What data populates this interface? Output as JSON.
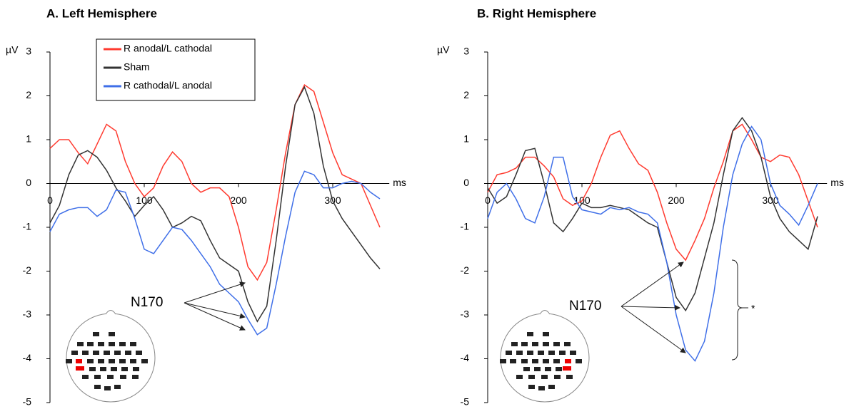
{
  "chart_data": [
    {
      "type": "line",
      "title": "A. Left Hemisphere",
      "xlabel": "ms",
      "ylabel": "µV",
      "x": [
        0,
        10,
        20,
        30,
        40,
        50,
        60,
        70,
        80,
        90,
        100,
        110,
        120,
        130,
        140,
        150,
        160,
        170,
        180,
        190,
        200,
        210,
        220,
        230,
        240,
        250,
        260,
        270,
        280,
        290,
        300,
        310,
        320,
        330,
        340,
        350
      ],
      "xlim": [
        0,
        360
      ],
      "xticks": [
        0,
        100,
        200,
        300
      ],
      "ylim": [
        -5,
        3
      ],
      "yticks": [
        -5,
        -4,
        -3,
        -2,
        -1,
        0,
        1,
        2,
        3
      ],
      "legend": "top-left",
      "series": [
        {
          "name": "R anodal/L cathodal",
          "color": "#ff3b30",
          "values": [
            0.8,
            1.0,
            1.0,
            0.7,
            0.45,
            0.9,
            1.35,
            1.2,
            0.5,
            0.0,
            -0.3,
            -0.1,
            0.4,
            0.72,
            0.5,
            0.0,
            -0.2,
            -0.1,
            -0.1,
            -0.3,
            -1.0,
            -1.9,
            -2.2,
            -1.8,
            -0.6,
            0.7,
            1.8,
            2.25,
            2.1,
            1.4,
            0.7,
            0.2,
            0.1,
            0.0,
            -0.5,
            -1.0
          ]
        },
        {
          "name": "Sham",
          "color": "#333333",
          "values": [
            -0.9,
            -0.5,
            0.2,
            0.65,
            0.75,
            0.6,
            0.3,
            -0.1,
            -0.4,
            -0.75,
            -0.5,
            -0.3,
            -0.6,
            -1.0,
            -0.9,
            -0.75,
            -0.85,
            -1.3,
            -1.7,
            -1.85,
            -2.0,
            -2.7,
            -3.15,
            -2.8,
            -1.3,
            0.4,
            1.8,
            2.2,
            1.6,
            0.4,
            -0.4,
            -0.8,
            -1.1,
            -1.4,
            -1.7,
            -1.95
          ]
        },
        {
          "name": "R cathodal/L anodal",
          "color": "#3f6fe8",
          "values": [
            -1.1,
            -0.7,
            -0.6,
            -0.55,
            -0.55,
            -0.75,
            -0.6,
            -0.15,
            -0.2,
            -0.8,
            -1.5,
            -1.6,
            -1.3,
            -1.0,
            -1.05,
            -1.3,
            -1.6,
            -1.9,
            -2.3,
            -2.5,
            -2.7,
            -3.1,
            -3.45,
            -3.3,
            -2.3,
            -1.2,
            -0.2,
            0.28,
            0.2,
            -0.1,
            -0.1,
            0.0,
            0.05,
            0.0,
            -0.2,
            -0.35
          ]
        }
      ],
      "annotations": [
        "N170"
      ]
    },
    {
      "type": "line",
      "title": "B. Right Hemisphere",
      "xlabel": "ms",
      "ylabel": "µV",
      "x": [
        0,
        10,
        20,
        30,
        40,
        50,
        60,
        70,
        80,
        90,
        100,
        110,
        120,
        130,
        140,
        150,
        160,
        170,
        180,
        190,
        200,
        210,
        220,
        230,
        240,
        250,
        260,
        270,
        280,
        290,
        300,
        310,
        320,
        330,
        340,
        350
      ],
      "xlim": [
        0,
        360
      ],
      "xticks": [
        0,
        100,
        200,
        300
      ],
      "ylim": [
        -5,
        3
      ],
      "yticks": [
        -5,
        -4,
        -3,
        -2,
        -1,
        0,
        1,
        2,
        3
      ],
      "series": [
        {
          "color": "#ff3b30",
          "values": [
            -0.2,
            0.2,
            0.25,
            0.35,
            0.6,
            0.6,
            0.4,
            0.15,
            -0.35,
            -0.5,
            -0.4,
            0.0,
            0.6,
            1.1,
            1.2,
            0.8,
            0.45,
            0.3,
            -0.2,
            -0.9,
            -1.5,
            -1.75,
            -1.3,
            -0.8,
            -0.1,
            0.5,
            1.2,
            1.35,
            1.0,
            0.6,
            0.5,
            0.65,
            0.6,
            0.2,
            -0.4,
            -1.0
          ]
        },
        {
          "color": "#333333",
          "values": [
            -0.1,
            -0.45,
            -0.3,
            0.2,
            0.75,
            0.8,
            0.0,
            -0.9,
            -1.1,
            -0.8,
            -0.45,
            -0.55,
            -0.55,
            -0.5,
            -0.55,
            -0.6,
            -0.75,
            -0.9,
            -1.0,
            -1.8,
            -2.6,
            -2.9,
            -2.5,
            -1.7,
            -0.9,
            0.2,
            1.2,
            1.5,
            1.2,
            0.6,
            -0.3,
            -0.8,
            -1.1,
            -1.3,
            -1.5,
            -0.75
          ]
        },
        {
          "color": "#3f6fe8",
          "values": [
            -0.8,
            -0.2,
            0.0,
            -0.35,
            -0.8,
            -0.9,
            -0.3,
            0.6,
            0.6,
            -0.3,
            -0.6,
            -0.65,
            -0.7,
            -0.55,
            -0.6,
            -0.55,
            -0.65,
            -0.7,
            -0.9,
            -1.8,
            -3.0,
            -3.8,
            -4.05,
            -3.6,
            -2.5,
            -1.0,
            0.2,
            0.9,
            1.3,
            1.0,
            0.0,
            -0.5,
            -0.7,
            -0.95,
            -0.5,
            0.0
          ]
        }
      ],
      "annotations": [
        "N170",
        "*"
      ]
    }
  ]
}
